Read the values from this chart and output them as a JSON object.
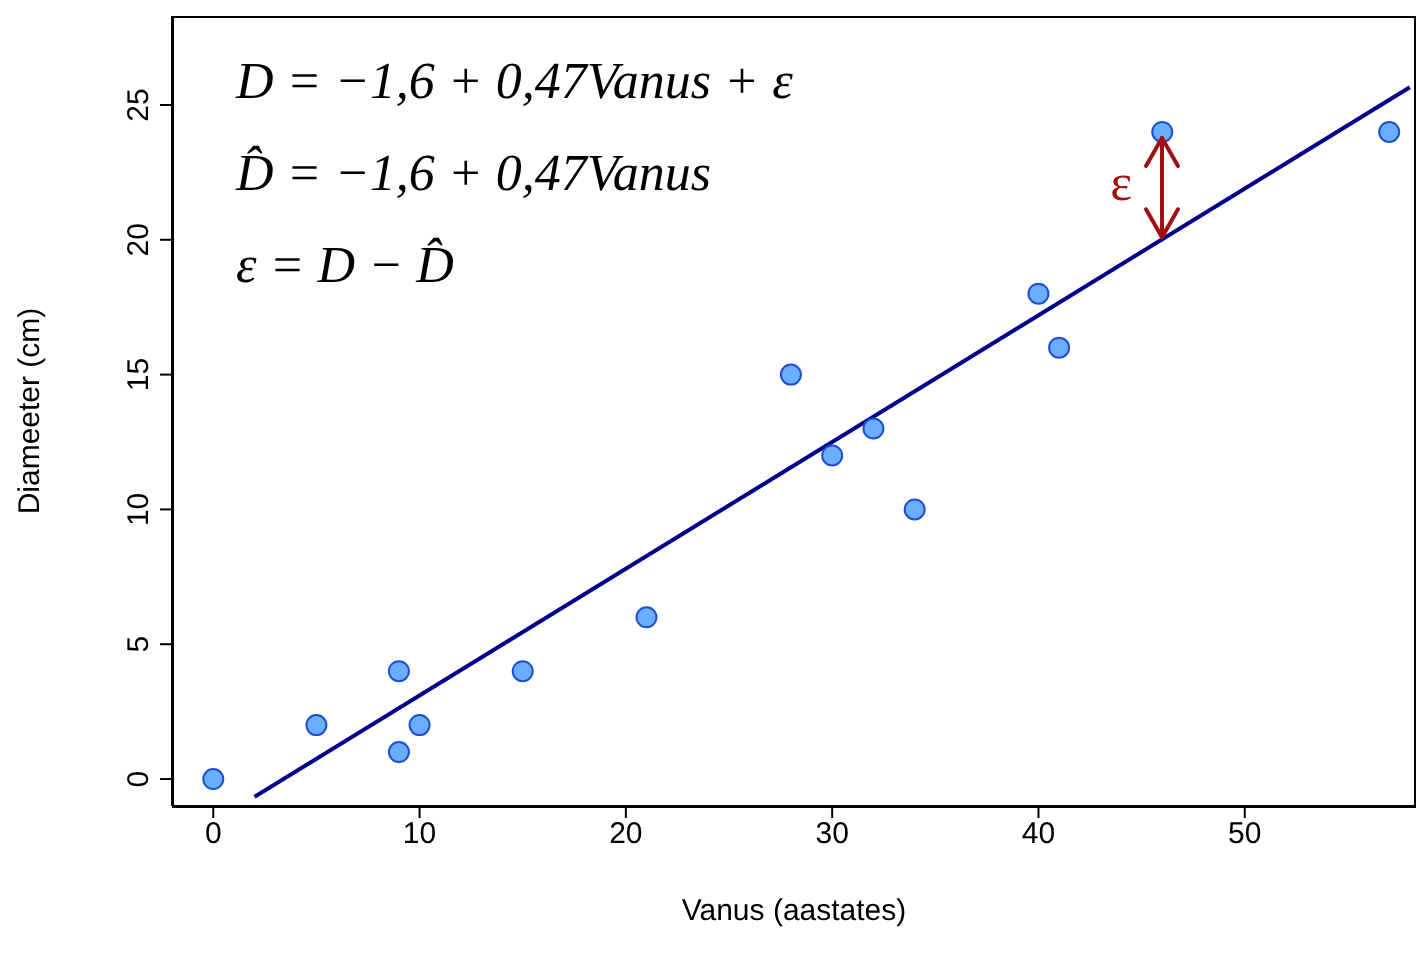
{
  "chart_data": {
    "type": "scatter",
    "xlabel": "Vanus (aastates)",
    "ylabel": "Diameeter (cm)",
    "xlim": [
      -2,
      58.3
    ],
    "ylim": [
      -1,
      28.3
    ],
    "xticks": [
      0,
      10,
      20,
      30,
      40,
      50
    ],
    "yticks": [
      0,
      5,
      10,
      15,
      20,
      25
    ],
    "series": [
      {
        "color": "#6aaeff",
        "marker": "circle",
        "x": [
          0,
          5,
          9,
          9,
          10,
          15,
          21,
          28,
          30,
          32,
          34,
          40,
          41,
          46,
          57
        ],
        "values": [
          0,
          2,
          4,
          1,
          2,
          4,
          6,
          15,
          12,
          13,
          10,
          18,
          16,
          24,
          24
        ]
      },
      {
        "type": "line",
        "color": "#00008b",
        "x": [
          2,
          58
        ],
        "values": [
          -0.66,
          25.66
        ]
      }
    ],
    "annotations": [
      "D = −1,6 + 0,47Vanus + ε",
      "D̂ = −1,6 + 0,47Vanus",
      "ε = D − D̂",
      "ε"
    ]
  }
}
